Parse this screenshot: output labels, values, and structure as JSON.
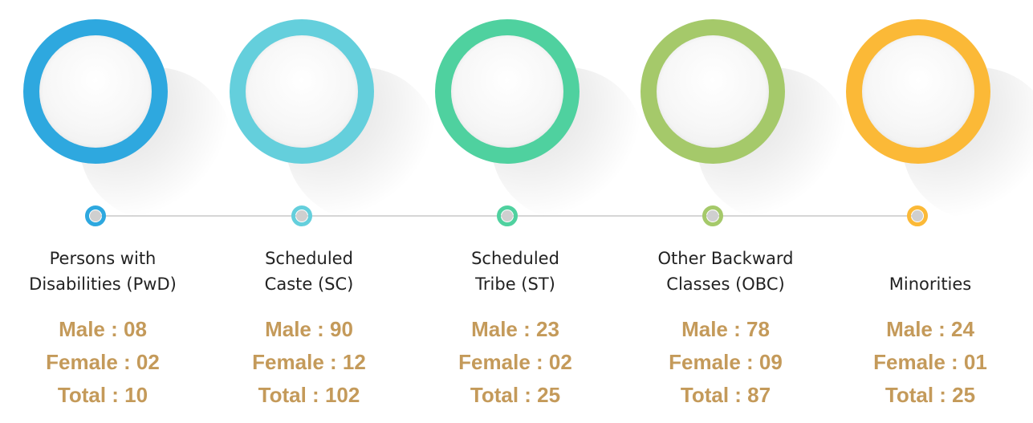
{
  "categories": [
    {
      "label_line1": "Persons with",
      "label_line2": "Disabilities (PwD)",
      "male": "Male : 08",
      "female": "Female : 02",
      "total": "Total : 10",
      "color": "#2ea8df"
    },
    {
      "label_line1": "Scheduled",
      "label_line2": "Caste (SC)",
      "male": "Male : 90",
      "female": "Female : 12",
      "total": "Total : 102",
      "color": "#64cfdc"
    },
    {
      "label_line1": "Scheduled",
      "label_line2": "Tribe (ST)",
      "male": "Male : 23",
      "female": "Female : 02",
      "total": "Total : 25",
      "color": "#4fd19f"
    },
    {
      "label_line1": "Other Backward",
      "label_line2": "Classes (OBC)",
      "male": "Male : 78",
      "female": "Female : 09",
      "total": "Total : 87",
      "color": "#a5c96a"
    },
    {
      "label_line1": "",
      "label_line2": "Minorities",
      "male": "Male : 24",
      "female": "Female : 01",
      "total": "Total : 25",
      "color": "#fbb937"
    }
  ]
}
